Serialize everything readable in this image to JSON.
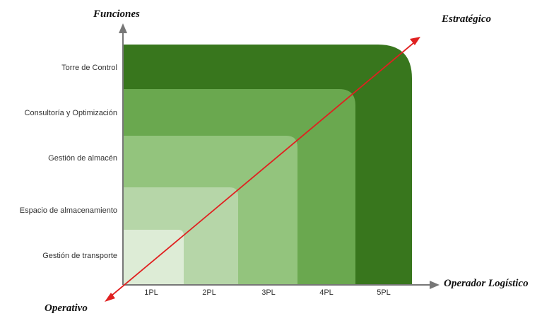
{
  "y_axis_title": "Funciones",
  "x_axis_title": "Operador Logístico",
  "top_right_label": "Estratégico",
  "bottom_left_label": "Operativo",
  "functions": [
    "Torre de Control",
    "Consultoría y Optimización",
    "Gestión de almacén",
    "Espacio de almacenamiento",
    "Gestión de transporte"
  ],
  "operators": [
    "1PL",
    "2PL",
    "3PL",
    "4PL",
    "5PL"
  ],
  "level_colors": [
    "#ddecd6",
    "#b6d6a8",
    "#93c47d",
    "#6aa84f",
    "#38761d"
  ],
  "arrow_color": "#e02020",
  "axis_color": "#777777"
}
